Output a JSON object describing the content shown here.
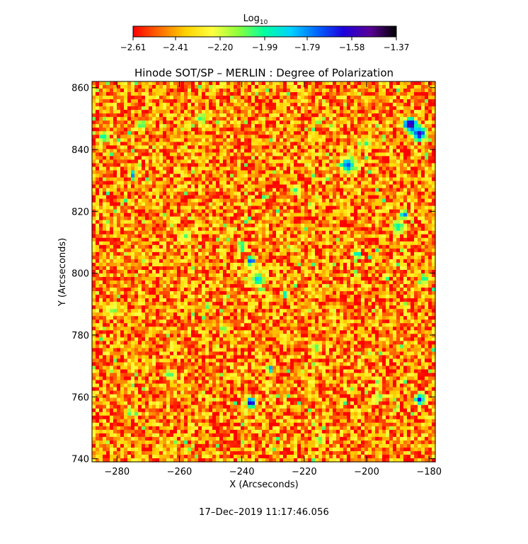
{
  "chart_data": {
    "type": "heatmap",
    "title": "Hinode SOT/SP – MERLIN : Degree of Polarization",
    "xlabel": "X (Arcseconds)",
    "ylabel": "Y (Arcseconds)",
    "xlim": [
      -288,
      -178
    ],
    "ylim": [
      739,
      862
    ],
    "xticks": [
      -280,
      -260,
      -240,
      -220,
      -200,
      -180
    ],
    "yticks": [
      740,
      760,
      780,
      800,
      820,
      840,
      860
    ],
    "xtick_labels": [
      "−280",
      "−260",
      "−240",
      "−220",
      "−200",
      "−180"
    ],
    "ytick_labels": [
      "740",
      "760",
      "780",
      "800",
      "820",
      "840",
      "860"
    ],
    "colorbar": {
      "title": "Log",
      "title_subscript": "10",
      "range": [
        -2.61,
        -1.37
      ],
      "ticks": [
        -2.61,
        -2.41,
        -2.2,
        -1.99,
        -1.79,
        -1.58,
        -1.37
      ],
      "tick_labels": [
        "−2.61",
        "−2.41",
        "−2.20",
        "−1.99",
        "−1.79",
        "−1.58",
        "−1.37"
      ],
      "colors": [
        "#ff0000",
        "#ff6a00",
        "#ffd200",
        "#ffff40",
        "#8cff3c",
        "#00ffa0",
        "#00d2ff",
        "#0064ff",
        "#1e00dc",
        "#5a0096",
        "#000000"
      ]
    },
    "background_level": -2.45,
    "features": [
      {
        "x": -186,
        "y": 848,
        "value": -1.45,
        "radius": 2.2
      },
      {
        "x": -183,
        "y": 845,
        "value": -1.55,
        "radius": 2.0
      },
      {
        "x": -206,
        "y": 835,
        "value": -1.72,
        "radius": 2.5
      },
      {
        "x": -237,
        "y": 758,
        "value": -1.55,
        "radius": 1.6
      },
      {
        "x": -183,
        "y": 759,
        "value": -1.62,
        "radius": 1.6
      },
      {
        "x": -237,
        "y": 804,
        "value": -1.65,
        "radius": 1.5
      },
      {
        "x": -235,
        "y": 798,
        "value": -1.85,
        "radius": 2.2
      },
      {
        "x": -240,
        "y": 809,
        "value": -1.95,
        "radius": 1.5
      },
      {
        "x": -275,
        "y": 832,
        "value": -1.68,
        "radius": 1.2
      },
      {
        "x": -188,
        "y": 819,
        "value": -1.7,
        "radius": 1.2
      },
      {
        "x": -190,
        "y": 815,
        "value": -1.95,
        "radius": 2.0
      },
      {
        "x": -231,
        "y": 769,
        "value": -1.6,
        "radius": 1.0
      },
      {
        "x": -226,
        "y": 793,
        "value": -1.7,
        "radius": 1.0
      },
      {
        "x": -203,
        "y": 806,
        "value": -1.75,
        "radius": 1.0
      },
      {
        "x": -284,
        "y": 844,
        "value": -1.98,
        "radius": 1.8
      },
      {
        "x": -272,
        "y": 848,
        "value": -2.0,
        "radius": 1.5
      },
      {
        "x": -253,
        "y": 850,
        "value": -2.02,
        "radius": 1.8
      },
      {
        "x": -223,
        "y": 827,
        "value": -2.02,
        "radius": 1.6
      },
      {
        "x": -200,
        "y": 842,
        "value": -2.0,
        "radius": 1.5
      },
      {
        "x": -246,
        "y": 782,
        "value": -2.05,
        "radius": 1.5
      },
      {
        "x": -216,
        "y": 776,
        "value": -2.05,
        "radius": 1.8
      },
      {
        "x": -196,
        "y": 760,
        "value": -2.05,
        "radius": 1.5
      },
      {
        "x": -281,
        "y": 788,
        "value": -2.05,
        "radius": 1.6
      },
      {
        "x": -263,
        "y": 767,
        "value": -2.03,
        "radius": 1.6
      },
      {
        "x": -181,
        "y": 798,
        "value": -2.0,
        "radius": 1.5
      },
      {
        "x": -258,
        "y": 812,
        "value": -2.05,
        "radius": 1.5
      },
      {
        "x": -215,
        "y": 746,
        "value": -2.05,
        "radius": 1.5
      },
      {
        "x": -276,
        "y": 755,
        "value": -2.03,
        "radius": 1.5
      }
    ]
  },
  "timestamp": "17–Dec–2019 11:17:46.056"
}
